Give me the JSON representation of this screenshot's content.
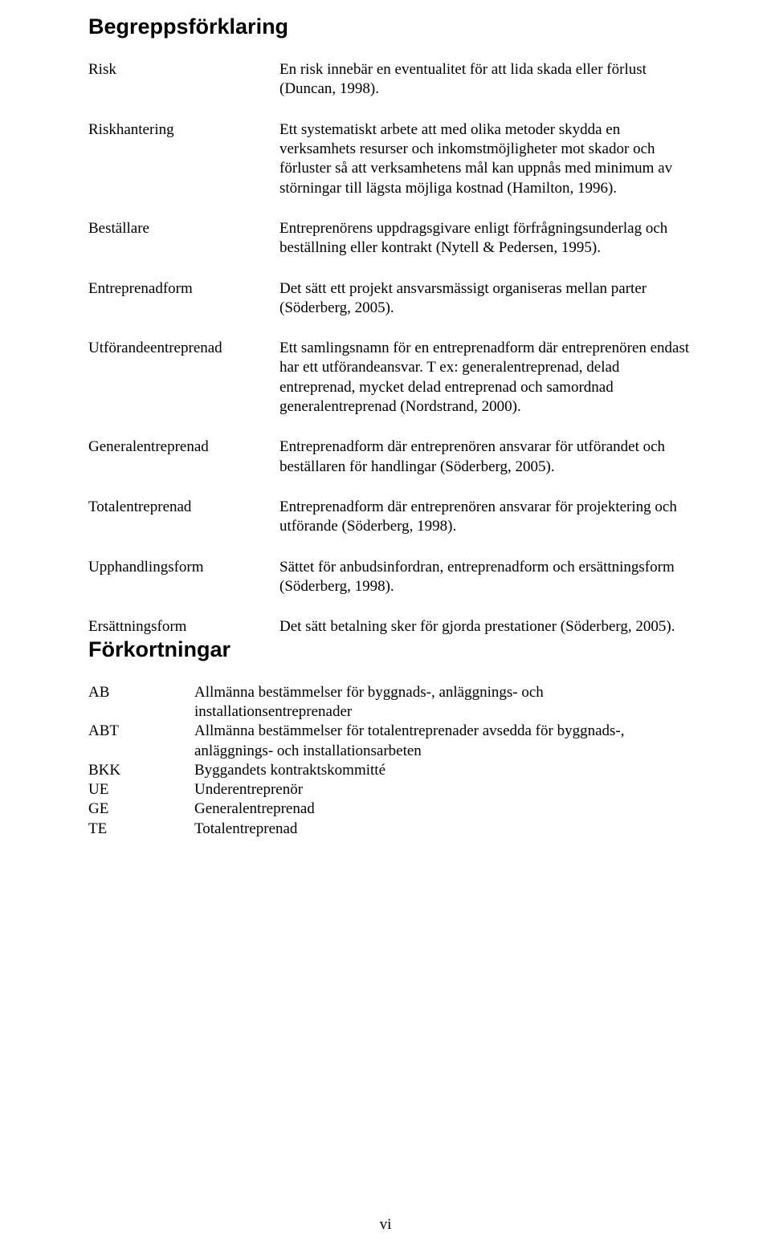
{
  "headings": {
    "begrepp": "Begreppsförklaring",
    "forkort": "Förkortningar"
  },
  "definitions": [
    {
      "term": "Risk",
      "text": "En risk innebär en eventualitet för att lida skada eller förlust (Duncan, 1998)."
    },
    {
      "term": "Riskhantering",
      "text": "Ett systematiskt arbete att med olika metoder skydda en verksamhets resurser och inkomstmöjligheter mot skador och förluster så att verksamhetens mål kan uppnås med minimum av störningar till lägsta möjliga kostnad (Hamilton, 1996)."
    },
    {
      "term": "Beställare",
      "text": "Entreprenörens uppdragsgivare enligt förfrågningsunderlag och beställning eller kontrakt (Nytell & Pedersen, 1995)."
    },
    {
      "term": "Entreprenadform",
      "text": "Det sätt ett projekt ansvarsmässigt organiseras mellan parter (Söderberg, 2005)."
    },
    {
      "term": "Utförandeentreprenad",
      "text": "Ett samlingsnamn för en entreprenadform där entreprenören endast har ett utförandeansvar. T ex: generalentreprenad, delad entreprenad, mycket delad entreprenad och samordnad generalentreprenad (Nordstrand, 2000)."
    },
    {
      "term": "Generalentreprenad",
      "text": "Entreprenadform där entreprenören ansvarar för utförandet och beställaren för handlingar (Söderberg, 2005)."
    },
    {
      "term": "Totalentreprenad",
      "text": "Entreprenadform där entreprenören ansvarar för projektering och utförande (Söderberg, 1998)."
    },
    {
      "term": "Upphandlingsform",
      "text": "Sättet för anbudsinfordran, entreprenadform och ersättningsform (Söderberg, 1998)."
    },
    {
      "term": "Ersättningsform",
      "text": "Det sätt betalning sker för gjorda prestationer (Söderberg, 2005)."
    }
  ],
  "abbreviations": [
    {
      "abbr": "AB",
      "text": "Allmänna bestämmelser för byggnads-, anläggnings- och installationsentreprenader"
    },
    {
      "abbr": "ABT",
      "text": "Allmänna bestämmelser för totalentreprenader avsedda för byggnads-, anläggnings- och installationsarbeten"
    },
    {
      "abbr": "BKK",
      "text": "Byggandets kontraktskommitté"
    },
    {
      "abbr": "UE",
      "text": "Underentreprenör"
    },
    {
      "abbr": "GE",
      "text": "Generalentreprenad"
    },
    {
      "abbr": "TE",
      "text": "Totalentreprenad"
    }
  ],
  "page_number": "vi"
}
